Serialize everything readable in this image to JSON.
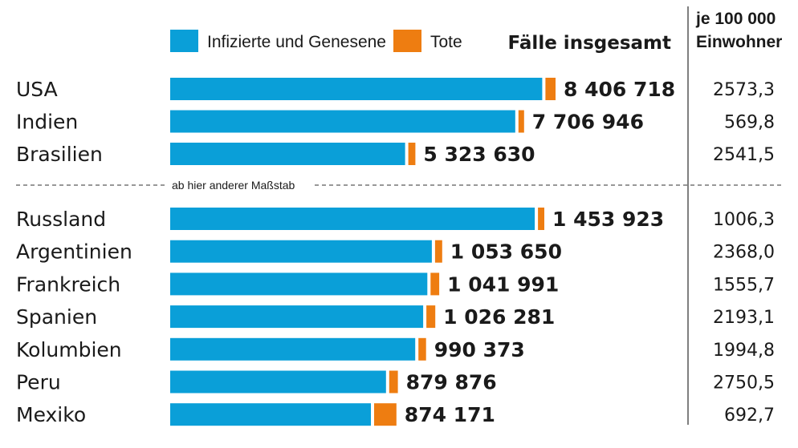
{
  "legend": {
    "infected_label": "Infizierte und Genesene",
    "deaths_label": "Tote",
    "total_heading": "Fälle insgesamt",
    "percap_heading_line1": "je 100 000",
    "percap_heading_line2": "Einwohner"
  },
  "scale_note": "ab hier anderer Maßstab",
  "colors": {
    "infected": "#0a9fd8",
    "deaths": "#ee7d11",
    "divider": "#777777"
  },
  "chart_data": {
    "type": "bar",
    "orientation": "horizontal",
    "stacked": true,
    "groups": [
      {
        "countries": [
          "USA",
          "Indien",
          "Brasilien"
        ],
        "totals": [
          8406718,
          7706946,
          5323630
        ],
        "totals_text": [
          "8 406 718",
          "7 706 946",
          "5 323 630"
        ],
        "deaths_approx": [
          223000,
          116600,
          155900
        ],
        "per_100000_text": [
          "2573,3",
          "569,8",
          "2541,5"
        ]
      },
      {
        "countries": [
          "Russland",
          "Argentinien",
          "Frankreich",
          "Spanien",
          "Kolumbien",
          "Peru",
          "Mexiko"
        ],
        "totals": [
          1453923,
          1053650,
          1041991,
          1026281,
          990373,
          879876,
          874171
        ],
        "totals_text": [
          "1 453 923",
          "1 053 650",
          "1 041 991",
          "1 026 281",
          "990 373",
          "879 876",
          "874 171"
        ],
        "deaths_approx": [
          25000,
          28000,
          34000,
          34800,
          29800,
          34000,
          87400
        ],
        "per_100000_text": [
          "1006,3",
          "2368,0",
          "1555,7",
          "2193,1",
          "1994,8",
          "2750,5",
          "692,7"
        ]
      }
    ]
  }
}
